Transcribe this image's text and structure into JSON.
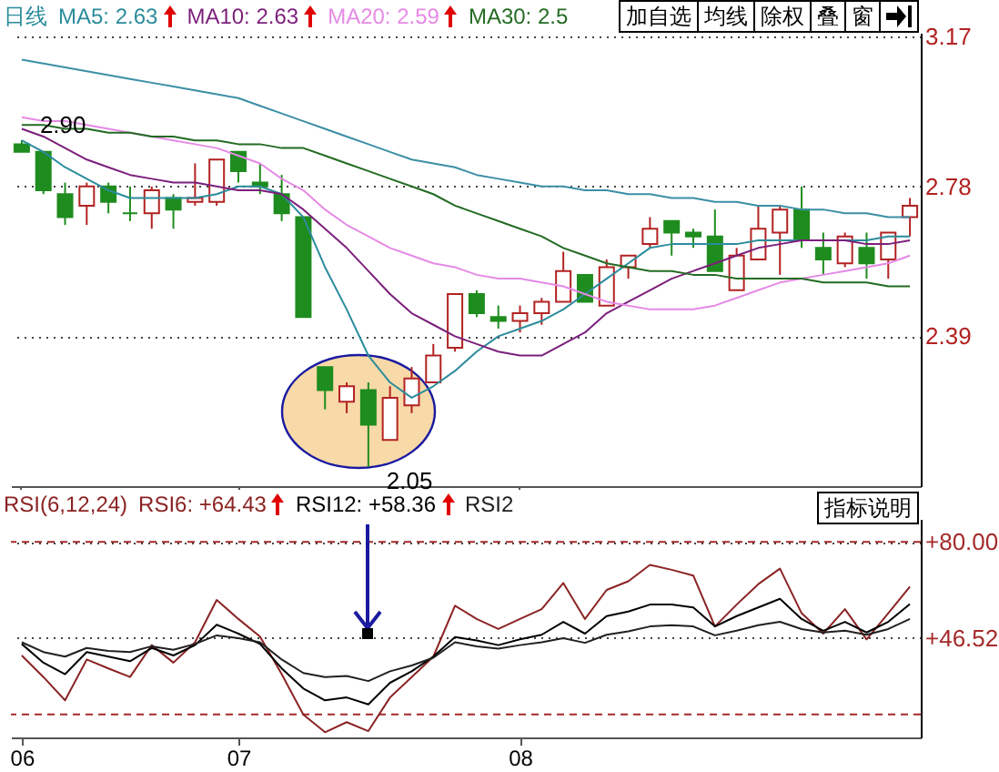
{
  "chart_data": [
    {
      "type": "candlestick",
      "title": "日线",
      "legend": "top",
      "grid": "y",
      "tick_labels": "y",
      "categories": [
        "06",
        null,
        null,
        null,
        null,
        null,
        null,
        null,
        null,
        null,
        "07",
        null,
        null,
        null,
        null,
        null,
        null,
        null,
        null,
        null,
        null,
        null,
        null,
        "08",
        null,
        null,
        null,
        null,
        null,
        null,
        null,
        null,
        null,
        null,
        null,
        null,
        null,
        null,
        null,
        null,
        null,
        null
      ],
      "ohlc": [
        [
          2.89,
          2.9,
          2.87,
          2.87
        ],
        [
          2.87,
          2.87,
          2.76,
          2.77
        ],
        [
          2.76,
          2.79,
          2.68,
          2.7
        ],
        [
          2.73,
          2.79,
          2.68,
          2.78
        ],
        [
          2.78,
          2.79,
          2.71,
          2.74
        ],
        [
          2.71,
          2.78,
          2.69,
          2.71
        ],
        [
          2.71,
          2.78,
          2.67,
          2.77
        ],
        [
          2.75,
          2.76,
          2.67,
          2.72
        ],
        [
          2.74,
          2.84,
          2.73,
          2.75
        ],
        [
          2.74,
          2.85,
          2.73,
          2.85
        ],
        [
          2.87,
          2.87,
          2.79,
          2.82
        ],
        [
          2.79,
          2.84,
          2.76,
          2.78
        ],
        [
          2.76,
          2.81,
          2.69,
          2.71
        ],
        [
          2.7,
          2.7,
          2.44,
          2.44
        ],
        [
          2.31,
          2.31,
          2.2,
          2.25
        ],
        [
          2.22,
          2.27,
          2.19,
          2.26
        ],
        [
          2.25,
          2.27,
          2.05,
          2.16
        ],
        [
          2.12,
          2.26,
          2.12,
          2.23
        ],
        [
          2.21,
          2.31,
          2.19,
          2.28
        ],
        [
          2.27,
          2.37,
          2.27,
          2.34
        ],
        [
          2.36,
          2.5,
          2.35,
          2.5
        ],
        [
          2.5,
          2.51,
          2.44,
          2.45
        ],
        [
          2.44,
          2.47,
          2.41,
          2.43
        ],
        [
          2.43,
          2.47,
          2.4,
          2.45
        ],
        [
          2.45,
          2.49,
          2.42,
          2.48
        ],
        [
          2.48,
          2.61,
          2.48,
          2.56
        ],
        [
          2.55,
          2.55,
          2.48,
          2.48
        ],
        [
          2.47,
          2.59,
          2.47,
          2.57
        ],
        [
          2.57,
          2.6,
          2.54,
          2.6
        ],
        [
          2.63,
          2.7,
          2.62,
          2.67
        ],
        [
          2.69,
          2.69,
          2.6,
          2.66
        ],
        [
          2.66,
          2.67,
          2.62,
          2.65
        ],
        [
          2.65,
          2.72,
          2.56,
          2.56
        ],
        [
          2.51,
          2.62,
          2.51,
          2.6
        ],
        [
          2.59,
          2.73,
          2.59,
          2.67
        ],
        [
          2.66,
          2.73,
          2.55,
          2.72
        ],
        [
          2.72,
          2.78,
          2.62,
          2.64
        ],
        [
          2.62,
          2.66,
          2.55,
          2.59
        ],
        [
          2.58,
          2.66,
          2.57,
          2.65
        ],
        [
          2.62,
          2.66,
          2.54,
          2.58
        ],
        [
          2.59,
          2.66,
          2.54,
          2.66
        ],
        [
          2.7,
          2.75,
          2.65,
          2.73
        ]
      ],
      "colors": [
        "#1e8c1e",
        "#1e8c1e",
        "#1e8c1e",
        "#b22222",
        "#1e8c1e",
        "#1e8c1e",
        "#b22222",
        "#1e8c1e",
        "#b22222",
        "#b22222",
        "#1e8c1e",
        "#1e8c1e",
        "#1e8c1e",
        "#1e8c1e",
        "#1e8c1e",
        "#b22222",
        "#1e8c1e",
        "#b22222",
        "#b22222",
        "#b22222",
        "#b22222",
        "#1e8c1e",
        "#1e8c1e",
        "#b22222",
        "#b22222",
        "#b22222",
        "#1e8c1e",
        "#b22222",
        "#b22222",
        "#b22222",
        "#1e8c1e",
        "#1e8c1e",
        "#1e8c1e",
        "#b22222",
        "#b22222",
        "#b22222",
        "#1e8c1e",
        "#1e8c1e",
        "#b22222",
        "#1e8c1e",
        "#b22222",
        "#b22222"
      ],
      "series": [
        {
          "name": "MA5: 2.63",
          "type": "line",
          "color": "#2b8c9c",
          "values": [
            2.9,
            2.87,
            2.83,
            2.8,
            2.77,
            2.75,
            2.75,
            2.75,
            2.75,
            2.76,
            2.78,
            2.78,
            2.76,
            2.7,
            2.57,
            2.46,
            2.34,
            2.27,
            2.23,
            2.26,
            2.3,
            2.35,
            2.39,
            2.41,
            2.43,
            2.46,
            2.5,
            2.54,
            2.58,
            2.62,
            2.63,
            2.63,
            2.63,
            2.63,
            2.64,
            2.64,
            2.64,
            2.64,
            2.64,
            2.64,
            2.65,
            2.65
          ]
        },
        {
          "name": "MA10: 2.63",
          "type": "line",
          "color": "#7b1f7b",
          "values": [
            2.93,
            2.91,
            2.88,
            2.85,
            2.83,
            2.81,
            2.8,
            2.79,
            2.79,
            2.78,
            2.77,
            2.77,
            2.76,
            2.72,
            2.67,
            2.62,
            2.56,
            2.5,
            2.45,
            2.42,
            2.39,
            2.37,
            2.35,
            2.34,
            2.34,
            2.37,
            2.4,
            2.45,
            2.48,
            2.51,
            2.54,
            2.56,
            2.58,
            2.6,
            2.62,
            2.63,
            2.64,
            2.64,
            2.64,
            2.63,
            2.63,
            2.64
          ]
        },
        {
          "name": "MA20: 2.59",
          "type": "line",
          "color": "#e58ae5",
          "values": [
            2.96,
            2.95,
            2.95,
            2.94,
            2.93,
            2.92,
            2.91,
            2.9,
            2.89,
            2.88,
            2.86,
            2.84,
            2.8,
            2.77,
            2.72,
            2.68,
            2.65,
            2.62,
            2.6,
            2.58,
            2.57,
            2.55,
            2.54,
            2.54,
            2.53,
            2.52,
            2.5,
            2.48,
            2.47,
            2.46,
            2.46,
            2.46,
            2.47,
            2.49,
            2.51,
            2.53,
            2.54,
            2.55,
            2.56,
            2.57,
            2.58,
            2.6
          ]
        },
        {
          "name": "MA30: 2.5",
          "type": "line",
          "color": "#236b23",
          "values": [
            2.94,
            2.94,
            2.93,
            2.93,
            2.92,
            2.92,
            2.91,
            2.91,
            2.9,
            2.9,
            2.89,
            2.89,
            2.88,
            2.88,
            2.86,
            2.84,
            2.82,
            2.8,
            2.78,
            2.76,
            2.73,
            2.71,
            2.69,
            2.67,
            2.65,
            2.62,
            2.6,
            2.58,
            2.57,
            2.56,
            2.56,
            2.55,
            2.55,
            2.54,
            2.54,
            2.54,
            2.54,
            2.53,
            2.53,
            2.53,
            2.52,
            2.52
          ]
        },
        {
          "type": "line",
          "color": "#3b8fa5",
          "values": [
            3.11,
            3.1,
            3.09,
            3.08,
            3.07,
            3.06,
            3.05,
            3.04,
            3.03,
            3.02,
            3.01,
            2.99,
            2.97,
            2.95,
            2.93,
            2.91,
            2.89,
            2.87,
            2.85,
            2.84,
            2.83,
            2.81,
            2.8,
            2.79,
            2.78,
            2.78,
            2.77,
            2.77,
            2.76,
            2.76,
            2.75,
            2.75,
            2.74,
            2.74,
            2.73,
            2.73,
            2.72,
            2.72,
            2.71,
            2.71,
            2.7,
            2.7
          ]
        }
      ],
      "ylim": [
        2.0,
        3.18
      ],
      "yticks": [
        3.17,
        2.78,
        2.39
      ],
      "annotations": [
        "2.90",
        "2.05",
        "加自选",
        "均线",
        "除权",
        "叠",
        "窗"
      ]
    },
    {
      "type": "line",
      "title": "RSI(6,12,24)",
      "legend": "top",
      "grid": "y",
      "categories": [
        "06",
        null,
        null,
        null,
        null,
        null,
        null,
        null,
        null,
        null,
        "07",
        null,
        null,
        null,
        null,
        null,
        null,
        null,
        null,
        null,
        null,
        null,
        null,
        "08",
        null,
        null,
        null,
        null,
        null,
        null,
        null,
        null,
        null,
        null,
        null,
        null,
        null,
        null,
        null,
        null,
        null,
        null
      ],
      "series": [
        {
          "name": "RSI6: +64.43",
          "color": "#8b2323",
          "values": [
            40.5,
            33.0,
            24.9,
            39.1,
            36.0,
            33.0,
            44.1,
            38.0,
            45.1,
            59.8,
            53.2,
            47.1,
            34.0,
            19.9,
            13.8,
            17.3,
            14.2,
            25.9,
            33.0,
            40.1,
            57.8,
            53.2,
            49.7,
            53.2,
            56.6,
            65.7,
            53.2,
            63.3,
            66.3,
            72.0,
            70.3,
            68.3,
            50.6,
            58.2,
            65.3,
            70.7,
            55.2,
            48.1,
            56.6,
            46.1,
            55.2,
            64.43
          ]
        },
        {
          "name": "RSI12: +58.36",
          "color": "#000000",
          "values": [
            44.5,
            38.0,
            34.0,
            41.7,
            40.1,
            38.5,
            43.1,
            40.5,
            44.1,
            51.2,
            48.1,
            44.5,
            36.0,
            29.0,
            24.9,
            25.9,
            23.5,
            31.0,
            35.0,
            40.1,
            46.9,
            45.7,
            44.1,
            46.1,
            47.7,
            52.2,
            48.1,
            54.2,
            55.8,
            58.2,
            58.2,
            57.2,
            50.6,
            54.2,
            57.2,
            60.2,
            53.2,
            49.1,
            52.2,
            48.5,
            52.2,
            58.36
          ]
        },
        {
          "name": "RSI2",
          "color": "#202020",
          "values": [
            45.1,
            41.7,
            40.1,
            43.1,
            42.1,
            41.7,
            43.7,
            42.5,
            44.5,
            47.5,
            46.5,
            45.1,
            39.1,
            34.4,
            33.0,
            33.4,
            31.6,
            35.0,
            37.0,
            39.7,
            45.1,
            43.7,
            42.9,
            44.1,
            45.1,
            46.5,
            44.9,
            47.7,
            48.9,
            50.6,
            51.0,
            50.6,
            47.5,
            49.1,
            51.0,
            52.2,
            49.7,
            48.5,
            49.1,
            47.7,
            49.7,
            53.2
          ]
        }
      ],
      "ylim": [
        12,
        88
      ],
      "yticks": [
        {
          "value": 80,
          "label": "+80.00"
        },
        {
          "value": 46.52,
          "label": "+46.52"
        }
      ],
      "ref_lines": [
        {
          "axis": "y",
          "value": 80,
          "color": "#a52a2a",
          "line_style": "dashed"
        },
        {
          "axis": "y",
          "value": 20,
          "color": "#a52a2a",
          "line_style": "dashed"
        }
      ],
      "annotations": [
        "指标说明"
      ]
    }
  ]
}
